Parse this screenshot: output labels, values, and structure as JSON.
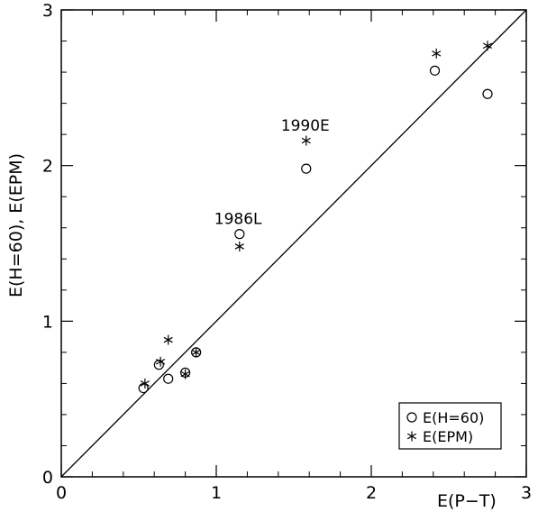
{
  "chart_data": {
    "type": "scatter",
    "title": "",
    "xlabel": "E(P−T)",
    "ylabel": "E(H=60),  E(EPM)",
    "xlim": [
      0,
      3
    ],
    "ylim": [
      0,
      3
    ],
    "xticks": [
      0,
      1,
      2,
      3
    ],
    "yticks": [
      0,
      1,
      2,
      3
    ],
    "x_tick_labels": [
      "0",
      "1",
      "2",
      "3"
    ],
    "y_tick_labels": [
      "0",
      "1",
      "2",
      "3"
    ],
    "grid": false,
    "legend": "bottom-right",
    "reference_line": {
      "type": "identity",
      "from": [
        0,
        0
      ],
      "to": [
        3,
        3
      ]
    },
    "series": [
      {
        "name": "E(H=60)",
        "marker": "circle",
        "points": [
          {
            "x": 0.53,
            "y": 0.57
          },
          {
            "x": 0.63,
            "y": 0.72
          },
          {
            "x": 0.69,
            "y": 0.63
          },
          {
            "x": 0.8,
            "y": 0.67
          },
          {
            "x": 0.87,
            "y": 0.8
          },
          {
            "x": 1.15,
            "y": 1.56
          },
          {
            "x": 1.58,
            "y": 1.98
          },
          {
            "x": 2.41,
            "y": 2.61
          },
          {
            "x": 2.75,
            "y": 2.46
          }
        ]
      },
      {
        "name": "E(EPM)",
        "marker": "asterisk",
        "points": [
          {
            "x": 0.54,
            "y": 0.6
          },
          {
            "x": 0.64,
            "y": 0.74
          },
          {
            "x": 0.69,
            "y": 0.88
          },
          {
            "x": 0.8,
            "y": 0.66
          },
          {
            "x": 0.87,
            "y": 0.8
          },
          {
            "x": 1.15,
            "y": 1.48
          },
          {
            "x": 1.58,
            "y": 2.16
          },
          {
            "x": 2.42,
            "y": 2.72
          },
          {
            "x": 2.75,
            "y": 2.77
          }
        ]
      }
    ],
    "annotations": [
      {
        "text": "1986L",
        "x": 1.15,
        "y": 1.56
      },
      {
        "text": "1990E",
        "x": 1.58,
        "y": 2.16
      }
    ]
  }
}
